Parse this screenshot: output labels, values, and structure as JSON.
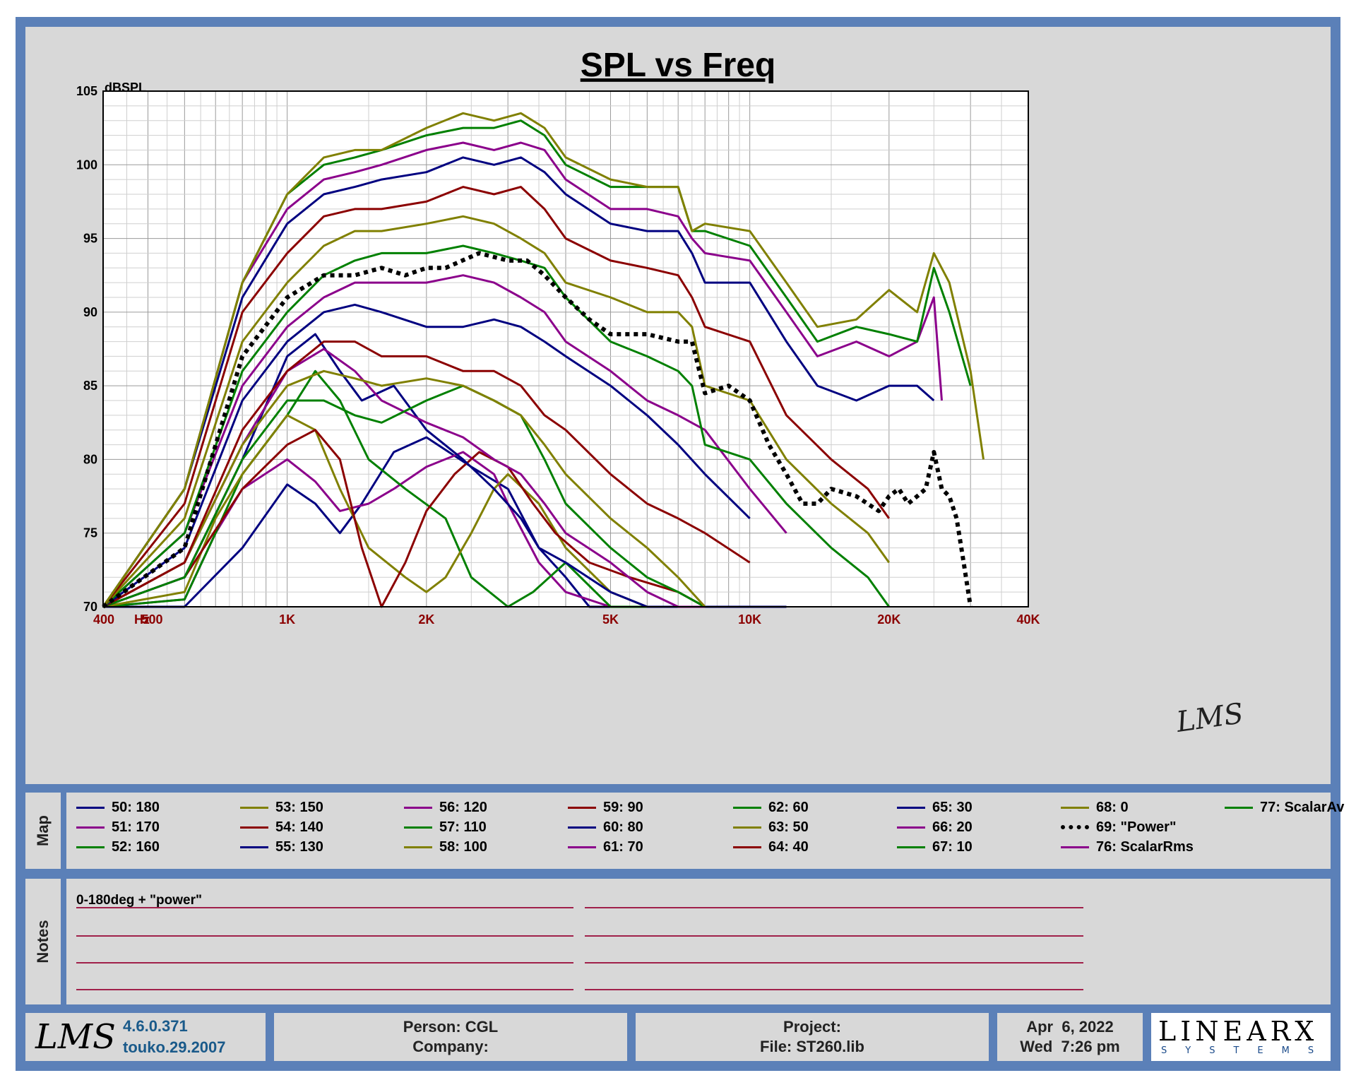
{
  "title": "SPL vs Freq",
  "chart_data": {
    "type": "line",
    "title": "SPL vs Freq",
    "ylabel": "dBSPL",
    "xlabel_unit": "Hz",
    "x_scale": "log",
    "xlim": [
      400,
      40000
    ],
    "ylim": [
      70,
      105
    ],
    "yticks": [
      105,
      100,
      95,
      90,
      85,
      80,
      75,
      70
    ],
    "ytick_labels": [
      "105",
      "100",
      "95",
      "90",
      "85",
      "80",
      "75",
      "70"
    ],
    "xticks": [
      400,
      500,
      1000,
      2000,
      5000,
      10000,
      20000,
      40000
    ],
    "xtick_labels": [
      "400",
      "500",
      "1K",
      "2K",
      "5K",
      "10K",
      "20K",
      "40K"
    ],
    "x_unit_label": "Hz",
    "grid": true,
    "series": [
      {
        "name": "50: 180",
        "color": "#000080",
        "x": [
          400,
          600,
          800,
          1000,
          1150,
          1300,
          1450,
          1700,
          2000,
          2500,
          3000,
          3500,
          4000,
          4500,
          5000,
          6000,
          7000,
          8000,
          10000,
          12000
        ],
        "y": [
          70,
          70,
          74,
          78.3,
          77,
          75,
          77,
          80.5,
          81.5,
          79.5,
          78,
          74,
          72,
          70,
          70,
          70,
          70,
          70,
          70,
          70
        ]
      },
      {
        "name": "51: 170",
        "color": "#8b008b",
        "x": [
          400,
          600,
          700,
          800,
          1000,
          1150,
          1300,
          1500,
          1700,
          2000,
          2400,
          2800,
          3000,
          3500,
          4000,
          5000,
          6000,
          8000
        ],
        "y": [
          70,
          70.5,
          75,
          78,
          80,
          78.5,
          76.5,
          77,
          78,
          79.5,
          80.5,
          79,
          77,
          73,
          71,
          70,
          70,
          70
        ]
      },
      {
        "name": "52: 160",
        "color": "#008000",
        "x": [
          400,
          600,
          700,
          800,
          1000,
          1150,
          1300,
          1500,
          1800,
          2200,
          2500,
          3000,
          3400,
          4000,
          5000,
          6000,
          7000,
          8000
        ],
        "y": [
          70,
          70.5,
          75,
          79,
          83,
          86,
          84,
          80,
          78,
          76,
          72,
          70,
          71,
          73,
          70,
          70,
          70,
          70
        ]
      },
      {
        "name": "53: 150",
        "color": "#808000",
        "x": [
          400,
          600,
          700,
          800,
          1000,
          1150,
          1300,
          1500,
          1800,
          2000,
          2200,
          2500,
          2800,
          3000,
          3500,
          4000,
          5000,
          6000,
          7000,
          8000
        ],
        "y": [
          70,
          71,
          76,
          79,
          83,
          82,
          78,
          74,
          72,
          71,
          72,
          75,
          78,
          79,
          77,
          74,
          71,
          70,
          70,
          70
        ]
      },
      {
        "name": "54: 140",
        "color": "#8b0000",
        "x": [
          400,
          600,
          800,
          1000,
          1150,
          1300,
          1450,
          1600,
          1800,
          2000,
          2300,
          2600,
          3000,
          3400,
          3800,
          4500,
          5500,
          7000,
          8000
        ],
        "y": [
          70,
          72,
          78,
          81,
          82,
          80,
          74,
          70,
          73,
          76.5,
          79,
          80.5,
          79.5,
          77,
          75,
          73,
          72,
          71,
          70
        ]
      },
      {
        "name": "55: 130",
        "color": "#000080",
        "x": [
          400,
          600,
          800,
          1000,
          1150,
          1300,
          1450,
          1700,
          2000,
          2400,
          2800,
          3200,
          3500,
          4000,
          5000,
          6000,
          8000
        ],
        "y": [
          70,
          72,
          80,
          87,
          88.5,
          86,
          84,
          85,
          82,
          80,
          78,
          76,
          74,
          73,
          71,
          70,
          70
        ]
      },
      {
        "name": "56: 120",
        "color": "#8b008b",
        "x": [
          400,
          600,
          800,
          1000,
          1200,
          1400,
          1600,
          2000,
          2400,
          2800,
          3200,
          3600,
          4000,
          5000,
          6000,
          7000,
          8000
        ],
        "y": [
          70,
          73,
          81,
          86,
          87.5,
          86,
          84,
          82.5,
          81.5,
          80,
          79,
          77,
          75,
          73,
          71,
          70,
          70
        ]
      },
      {
        "name": "57: 110",
        "color": "#008000",
        "x": [
          400,
          600,
          800,
          1000,
          1200,
          1400,
          1600,
          2000,
          2400,
          2800,
          3200,
          3600,
          4000,
          5000,
          6000,
          7000,
          8000
        ],
        "y": [
          70,
          72,
          80,
          84,
          84,
          83,
          82.5,
          84,
          85,
          84,
          83,
          80,
          77,
          74,
          72,
          71,
          70
        ]
      },
      {
        "name": "58: 100",
        "color": "#808000",
        "x": [
          400,
          600,
          800,
          1000,
          1200,
          1400,
          1600,
          2000,
          2400,
          2800,
          3200,
          3600,
          4000,
          5000,
          6000,
          7000,
          8000
        ],
        "y": [
          70,
          73,
          81,
          85,
          86,
          85.5,
          85,
          85.5,
          85,
          84,
          83,
          81,
          79,
          76,
          74,
          72,
          70
        ]
      },
      {
        "name": "59: 90",
        "color": "#8b0000",
        "x": [
          400,
          600,
          800,
          1000,
          1200,
          1400,
          1600,
          2000,
          2400,
          2800,
          3200,
          3600,
          4000,
          5000,
          6000,
          7000,
          8000,
          10000
        ],
        "y": [
          70,
          73,
          82,
          86,
          88,
          88,
          87,
          87,
          86,
          86,
          85,
          83,
          82,
          79,
          77,
          76,
          75,
          73
        ]
      },
      {
        "name": "60: 80",
        "color": "#000080",
        "x": [
          400,
          600,
          800,
          1000,
          1200,
          1400,
          1600,
          2000,
          2400,
          2800,
          3200,
          3600,
          4000,
          5000,
          6000,
          7000,
          8000,
          10000
        ],
        "y": [
          70,
          74,
          84,
          88,
          90,
          90.5,
          90,
          89,
          89,
          89.5,
          89,
          88,
          87,
          85,
          83,
          81,
          79,
          76
        ]
      },
      {
        "name": "61: 70",
        "color": "#8b008b",
        "x": [
          400,
          600,
          800,
          1000,
          1200,
          1400,
          1600,
          2000,
          2400,
          2800,
          3200,
          3600,
          4000,
          5000,
          6000,
          7000,
          8000,
          10000,
          12000
        ],
        "y": [
          70,
          75,
          85,
          89,
          91,
          92,
          92,
          92,
          92.5,
          92,
          91,
          90,
          88,
          86,
          84,
          83,
          82,
          78,
          75
        ]
      },
      {
        "name": "62: 60",
        "color": "#008000",
        "x": [
          400,
          600,
          800,
          1000,
          1200,
          1400,
          1600,
          2000,
          2400,
          2800,
          3200,
          3600,
          4000,
          5000,
          6000,
          7000,
          7500,
          8000,
          10000,
          12000,
          15000,
          18000,
          20000
        ],
        "y": [
          70,
          75,
          86,
          90,
          92.5,
          93.5,
          94,
          94,
          94.5,
          94,
          93.5,
          93,
          91,
          88,
          87,
          86,
          85,
          81,
          80,
          77,
          74,
          72,
          70
        ]
      },
      {
        "name": "63: 50",
        "color": "#808000",
        "x": [
          400,
          600,
          800,
          1000,
          1200,
          1400,
          1600,
          2000,
          2400,
          2800,
          3200,
          3600,
          4000,
          5000,
          6000,
          7000,
          7500,
          8000,
          10000,
          12000,
          15000,
          18000,
          20000
        ],
        "y": [
          70,
          76,
          88,
          92,
          94.5,
          95.5,
          95.5,
          96,
          96.5,
          96,
          95,
          94,
          92,
          91,
          90,
          90,
          89,
          85,
          84,
          80,
          77,
          75,
          73
        ]
      },
      {
        "name": "64: 40",
        "color": "#8b0000",
        "x": [
          400,
          600,
          800,
          1000,
          1200,
          1400,
          1600,
          2000,
          2400,
          2800,
          3200,
          3600,
          4000,
          5000,
          6000,
          7000,
          7500,
          8000,
          10000,
          12000,
          15000,
          18000,
          20000
        ],
        "y": [
          70,
          77,
          90,
          94,
          96.5,
          97,
          97,
          97.5,
          98.5,
          98,
          98.5,
          97,
          95,
          93.5,
          93,
          92.5,
          91,
          89,
          88,
          83,
          80,
          78,
          76
        ]
      },
      {
        "name": "65: 30",
        "color": "#000080",
        "x": [
          400,
          600,
          800,
          1000,
          1200,
          1400,
          1600,
          2000,
          2400,
          2800,
          3200,
          3600,
          4000,
          5000,
          6000,
          7000,
          7500,
          8000,
          10000,
          12000,
          14000,
          17000,
          20000,
          23000,
          25000
        ],
        "y": [
          70,
          78,
          91,
          96,
          98,
          98.5,
          99,
          99.5,
          100.5,
          100,
          100.5,
          99.5,
          98,
          96,
          95.5,
          95.5,
          94,
          92,
          92,
          88,
          85,
          84,
          85,
          85,
          84
        ]
      },
      {
        "name": "66: 20",
        "color": "#8b008b",
        "x": [
          400,
          600,
          800,
          1000,
          1200,
          1400,
          1600,
          2000,
          2400,
          2800,
          3200,
          3600,
          4000,
          5000,
          6000,
          7000,
          7500,
          8000,
          10000,
          12000,
          14000,
          17000,
          20000,
          23000,
          25000,
          26000
        ],
        "y": [
          70,
          78,
          92,
          97,
          99,
          99.5,
          100,
          101,
          101.5,
          101,
          101.5,
          101,
          99,
          97,
          97,
          96.5,
          95,
          94,
          93.5,
          90,
          87,
          88,
          87,
          88,
          91,
          84
        ]
      },
      {
        "name": "67: 10",
        "color": "#008000",
        "x": [
          400,
          600,
          800,
          1000,
          1200,
          1400,
          1600,
          2000,
          2400,
          2800,
          3200,
          3600,
          4000,
          5000,
          6000,
          7000,
          7500,
          8000,
          10000,
          12000,
          14000,
          17000,
          20000,
          23000,
          25000,
          27000,
          30000
        ],
        "y": [
          70,
          78,
          92,
          98,
          100,
          100.5,
          101,
          102,
          102.5,
          102.5,
          103,
          102,
          100,
          98.5,
          98.5,
          98.5,
          95.5,
          95.5,
          94.5,
          91,
          88,
          89,
          88.5,
          88,
          93,
          90,
          85
        ]
      },
      {
        "name": "68: 0",
        "color": "#808000",
        "x": [
          400,
          600,
          800,
          1000,
          1200,
          1400,
          1600,
          2000,
          2400,
          2800,
          3200,
          3600,
          4000,
          5000,
          6000,
          7000,
          7500,
          8000,
          10000,
          12000,
          14000,
          17000,
          20000,
          23000,
          25000,
          27000,
          30000,
          32000
        ],
        "y": [
          70,
          78,
          92,
          98,
          100.5,
          101,
          101,
          102.5,
          103.5,
          103,
          103.5,
          102.5,
          100.5,
          99,
          98.5,
          98.5,
          95.5,
          96,
          95.5,
          92,
          89,
          89.5,
          91.5,
          90,
          94,
          92,
          86,
          80
        ]
      },
      {
        "name": "69: \"Power\"",
        "color": "#000000",
        "dashed": true,
        "x": [
          400,
          600,
          800,
          1000,
          1200,
          1400,
          1600,
          1800,
          2000,
          2200,
          2600,
          3000,
          3300,
          3600,
          4000,
          4500,
          5000,
          6000,
          7000,
          7500,
          8000,
          9000,
          10000,
          11000,
          12000,
          13000,
          14000,
          15000,
          17000,
          19000,
          20000,
          21000,
          22000,
          23000,
          24000,
          25000,
          26000,
          27000,
          28000,
          29000,
          30000
        ],
        "y": [
          70,
          74,
          87,
          91,
          92.5,
          92.5,
          93,
          92.5,
          93,
          93,
          94,
          93.5,
          93.5,
          92.5,
          91,
          89.5,
          88.5,
          88.5,
          88,
          88,
          84.5,
          85,
          84,
          81,
          79,
          77,
          77,
          78,
          77.5,
          76.5,
          77.5,
          78,
          77,
          77.5,
          78,
          80.5,
          78,
          77.5,
          76,
          73,
          70
        ]
      },
      {
        "name": "76: ScalarRms",
        "color": "#8b008b",
        "x": [],
        "y": []
      },
      {
        "name": "77: ScalarAv",
        "color": "#008000",
        "x": [],
        "y": []
      }
    ]
  },
  "legend": {
    "side_label": "Map",
    "items": [
      {
        "label": "50: 180",
        "color": "#000080",
        "dashed": false
      },
      {
        "label": "51: 170",
        "color": "#8b008b",
        "dashed": false
      },
      {
        "label": "52: 160",
        "color": "#008000",
        "dashed": false
      },
      {
        "label": "53: 150",
        "color": "#808000",
        "dashed": false
      },
      {
        "label": "54: 140",
        "color": "#8b0000",
        "dashed": false
      },
      {
        "label": "55: 130",
        "color": "#000080",
        "dashed": false
      },
      {
        "label": "56: 120",
        "color": "#8b008b",
        "dashed": false
      },
      {
        "label": "57: 110",
        "color": "#008000",
        "dashed": false
      },
      {
        "label": "58: 100",
        "color": "#808000",
        "dashed": false
      },
      {
        "label": "59: 90",
        "color": "#8b0000",
        "dashed": false
      },
      {
        "label": "60: 80",
        "color": "#000080",
        "dashed": false
      },
      {
        "label": "61: 70",
        "color": "#8b008b",
        "dashed": false
      },
      {
        "label": "62: 60",
        "color": "#008000",
        "dashed": false
      },
      {
        "label": "63: 50",
        "color": "#808000",
        "dashed": false
      },
      {
        "label": "64: 40",
        "color": "#8b0000",
        "dashed": false
      },
      {
        "label": "65: 30",
        "color": "#000080",
        "dashed": false
      },
      {
        "label": "66: 20",
        "color": "#8b008b",
        "dashed": false
      },
      {
        "label": "67: 10",
        "color": "#008000",
        "dashed": false
      },
      {
        "label": "68: 0",
        "color": "#808000",
        "dashed": false
      },
      {
        "label": "69: \"Power\"",
        "color": "#000000",
        "dashed": true
      },
      {
        "label": "76: ScalarRms",
        "color": "#8b008b",
        "dashed": false
      },
      {
        "label": "77: ScalarAv",
        "color": "#008000",
        "dashed": false
      }
    ]
  },
  "notes": {
    "side_label": "Notes",
    "text": "0-180deg + \"power\""
  },
  "footer": {
    "logo": "LMS",
    "version": "4.6.0.371",
    "build": "touko.29.2007",
    "person": "Person: CGL",
    "company": "Company:",
    "project": "Project:",
    "file": "File: ST260.lib",
    "date": "Apr  6, 2022",
    "time": "Wed  7:26 pm",
    "brand": "LINEARX",
    "brand_sub": "SYSTEMS"
  },
  "colors": {
    "frame": "#5b80b8",
    "panel": "#d8d8d8",
    "axis_text": "#8b0000",
    "note_line": "#a0204a"
  }
}
